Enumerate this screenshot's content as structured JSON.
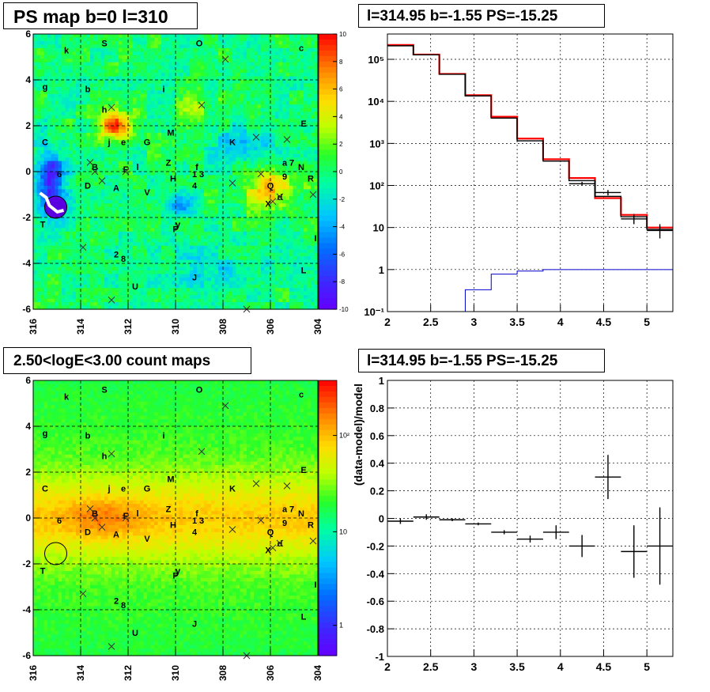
{
  "titles": {
    "map1": "PS map b=0 l=310",
    "spec": "l=314.95 b=-1.55 PS=-15.25",
    "map2": "2.50<logE<3.00 count maps",
    "resid": "l=314.95 b=-1.55 PS=-15.25"
  },
  "chart_data": [
    {
      "type": "heatmap",
      "title": "PS map b=0 l=310",
      "x_ticks": [
        "316",
        "314",
        "312",
        "310",
        "308",
        "306",
        "304"
      ],
      "y_ticks": [
        "-6",
        "-4",
        "-2",
        "0",
        "2",
        "4",
        "6"
      ],
      "xlim": [
        316,
        304
      ],
      "ylim": [
        -6,
        6
      ],
      "colorbar_ticks": [
        "10",
        "8",
        "6",
        "4",
        "2",
        "0",
        "-2",
        "-4",
        "-6",
        "-8",
        "-10"
      ],
      "colorbar_range": [
        -10,
        10
      ],
      "grid": true,
      "source_labels": [
        {
          "t": "k",
          "l": 314.6,
          "b": 5.3
        },
        {
          "t": "S",
          "l": 313.0,
          "b": 5.6
        },
        {
          "t": "O",
          "l": 309.0,
          "b": 5.6
        },
        {
          "t": "c",
          "l": 304.7,
          "b": 5.4
        },
        {
          "t": "g",
          "l": 315.5,
          "b": 3.7
        },
        {
          "t": "b",
          "l": 313.7,
          "b": 3.6
        },
        {
          "t": "i",
          "l": 310.5,
          "b": 3.6
        },
        {
          "t": "h",
          "l": 313.0,
          "b": 2.7
        },
        {
          "t": "E",
          "l": 304.6,
          "b": 2.1
        },
        {
          "t": "M",
          "l": 310.2,
          "b": 1.7
        },
        {
          "t": "j",
          "l": 312.8,
          "b": 1.3
        },
        {
          "t": "e",
          "l": 312.2,
          "b": 1.3
        },
        {
          "t": "G",
          "l": 311.2,
          "b": 1.3
        },
        {
          "t": "K",
          "l": 307.6,
          "b": 1.3
        },
        {
          "t": "C",
          "l": 315.5,
          "b": 1.3
        },
        {
          "t": "Z",
          "l": 310.3,
          "b": 0.4
        },
        {
          "t": "a",
          "l": 305.4,
          "b": 0.4
        },
        {
          "t": "7",
          "l": 305.1,
          "b": 0.4
        },
        {
          "t": "N",
          "l": 304.7,
          "b": 0.2
        },
        {
          "t": "B",
          "l": 313.4,
          "b": 0.2
        },
        {
          "t": "F",
          "l": 312.1,
          "b": 0.1
        },
        {
          "t": "l",
          "l": 311.6,
          "b": 0.2
        },
        {
          "t": "f",
          "l": 309.1,
          "b": 0.2
        },
        {
          "t": "1",
          "l": 309.2,
          "b": -0.1
        },
        {
          "t": "3",
          "l": 308.9,
          "b": -0.1
        },
        {
          "t": "9",
          "l": 305.4,
          "b": -0.2
        },
        {
          "t": "6",
          "l": 314.9,
          "b": -0.1
        },
        {
          "t": "R",
          "l": 304.3,
          "b": -0.3
        },
        {
          "t": "H",
          "l": 310.1,
          "b": -0.3
        },
        {
          "t": "Q",
          "l": 306.0,
          "b": -0.6
        },
        {
          "t": "4",
          "l": 309.2,
          "b": -0.6
        },
        {
          "t": "D",
          "l": 313.7,
          "b": -0.6
        },
        {
          "t": "A",
          "l": 312.5,
          "b": -0.7
        },
        {
          "t": "V",
          "l": 311.2,
          "b": -0.9
        },
        {
          "t": "d",
          "l": 305.6,
          "b": -1.1
        },
        {
          "t": "X",
          "l": 306.1,
          "b": -1.4
        },
        {
          "t": "T",
          "l": 315.6,
          "b": -2.3
        },
        {
          "t": "y",
          "l": 309.9,
          "b": -2.3
        },
        {
          "t": "P",
          "l": 310.0,
          "b": -2.5
        },
        {
          "t": "I",
          "l": 304.1,
          "b": -2.9
        },
        {
          "t": "2",
          "l": 312.5,
          "b": -3.6
        },
        {
          "t": "8",
          "l": 312.2,
          "b": -3.8
        },
        {
          "t": "L",
          "l": 304.6,
          "b": -4.3
        },
        {
          "t": "J",
          "l": 309.2,
          "b": -4.6
        },
        {
          "t": "U",
          "l": 311.7,
          "b": -5.0
        }
      ]
    },
    {
      "type": "line",
      "title": "l=314.95 b=-1.55 PS=-15.25",
      "y_scale": "log",
      "xlim": [
        2,
        5.3
      ],
      "ylim": [
        0.1,
        400000
      ],
      "x_ticks": [
        "2",
        "2.5",
        "3",
        "3.5",
        "4",
        "4.5",
        "5"
      ],
      "y_ticks": [
        "10⁻¹",
        "1",
        "10",
        "10²",
        "10³",
        "10⁴",
        "10⁵"
      ],
      "grid": true,
      "series": [
        {
          "color": "#ff0000",
          "type": "step",
          "edges": [
            2.0,
            2.3,
            2.6,
            2.9,
            3.2,
            3.5,
            3.8,
            4.1,
            4.4,
            4.7,
            5.0,
            5.3
          ],
          "values": [
            220000,
            130000,
            45000,
            14000,
            4300,
            1300,
            420,
            150,
            50,
            20,
            10
          ]
        },
        {
          "color": "#000000",
          "type": "step",
          "edges": [
            2.0,
            2.3,
            2.6,
            2.9,
            3.2,
            3.5,
            3.8,
            4.1,
            4.4,
            4.7,
            5.0,
            5.3
          ],
          "values": [
            210000,
            128000,
            44000,
            13500,
            4000,
            1150,
            380,
            130,
            55,
            18,
            9
          ]
        },
        {
          "color": "#000000",
          "type": "points",
          "x": [
            4.25,
            4.55,
            4.85,
            5.15
          ],
          "y": [
            110,
            68,
            16,
            8.5
          ],
          "yerr_lo": [
            100,
            58,
            12,
            5.5
          ],
          "yerr_hi": [
            122,
            78,
            21,
            12
          ]
        },
        {
          "color": "#0000cc",
          "type": "step",
          "x": [
            2.0,
            2.9,
            3.2,
            3.5,
            3.8,
            5.3
          ],
          "y": [
            0.1,
            0.33,
            0.78,
            0.92,
            1.0,
            1.0
          ]
        }
      ]
    },
    {
      "type": "heatmap",
      "title": "2.50<logE<3.00 count maps",
      "x_ticks": [
        "316",
        "314",
        "312",
        "310",
        "308",
        "306",
        "304"
      ],
      "y_ticks": [
        "-6",
        "-4",
        "-2",
        "0",
        "2",
        "4",
        "6"
      ],
      "xlim": [
        316,
        304
      ],
      "ylim": [
        -6,
        6
      ],
      "colorbar_ticks": [
        "10²",
        "10",
        "1"
      ],
      "colorbar_scale": "log",
      "grid": true
    },
    {
      "type": "scatter",
      "title": "l=314.95 b=-1.55 PS=-15.25",
      "ylabel": "(data-model)/model",
      "xlim": [
        2,
        5.3
      ],
      "ylim": [
        -1,
        1
      ],
      "x_ticks": [
        "2",
        "2.5",
        "3",
        "3.5",
        "4",
        "4.5",
        "5"
      ],
      "y_ticks": [
        "1",
        "0.8",
        "0.6",
        "0.4",
        "0.2",
        "0",
        "-0.2",
        "-0.4",
        "-0.6",
        "-0.8",
        "-1"
      ],
      "grid": true,
      "x": [
        2.15,
        2.45,
        2.75,
        3.05,
        3.35,
        3.65,
        3.95,
        4.25,
        4.55,
        4.85,
        5.15
      ],
      "xerr": [
        0.15,
        0.15,
        0.15,
        0.15,
        0.15,
        0.15,
        0.15,
        0.15,
        0.15,
        0.15,
        0.15
      ],
      "y": [
        -0.02,
        0.01,
        -0.01,
        -0.04,
        -0.1,
        -0.15,
        -0.1,
        -0.2,
        0.3,
        -0.24,
        -0.2
      ],
      "yerr": [
        0.02,
        0.02,
        0.01,
        0.01,
        0.015,
        0.025,
        0.05,
        0.08,
        0.16,
        0.19,
        0.28
      ]
    }
  ]
}
